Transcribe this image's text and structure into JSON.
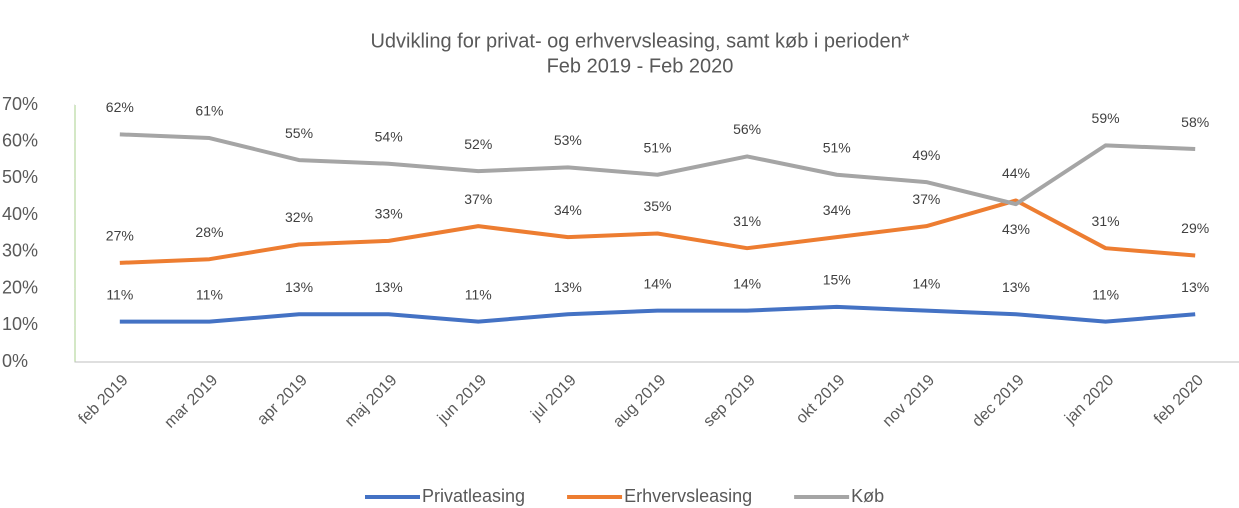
{
  "chart_data": {
    "type": "line",
    "title": "Udvikling for privat- og erhvervsleasing, samt køb i perioden*",
    "subtitle": "Feb 2019 - Feb 2020",
    "categories": [
      "feb 2019",
      "mar 2019",
      "apr 2019",
      "maj 2019",
      "jun 2019",
      "jul 2019",
      "aug 2019",
      "sep 2019",
      "okt 2019",
      "nov 2019",
      "dec 2019",
      "jan 2020",
      "feb 2020"
    ],
    "series": [
      {
        "name": "Privatleasing",
        "color": "#4472c4",
        "values": [
          11,
          11,
          13,
          13,
          11,
          13,
          14,
          14,
          15,
          14,
          13,
          11,
          13
        ],
        "value_labels": [
          "11%",
          "11%",
          "13%",
          "13%",
          "11%",
          "13%",
          "14%",
          "14%",
          "15%",
          "14%",
          "13%",
          "11%",
          "13%"
        ]
      },
      {
        "name": "Erhvervsleasing",
        "color": "#ed7d31",
        "values": [
          27,
          28,
          32,
          33,
          37,
          34,
          35,
          31,
          34,
          37,
          44,
          31,
          29
        ],
        "value_labels": [
          "27%",
          "28%",
          "32%",
          "33%",
          "37%",
          "34%",
          "35%",
          "31%",
          "34%",
          "37%",
          "44%",
          "31%",
          "29%"
        ]
      },
      {
        "name": "Køb",
        "color": "#a5a5a5",
        "values": [
          62,
          61,
          55,
          54,
          52,
          53,
          51,
          56,
          51,
          49,
          43,
          59,
          58
        ],
        "value_labels": [
          "62%",
          "61%",
          "55%",
          "54%",
          "52%",
          "53%",
          "51%",
          "56%",
          "51%",
          "49%",
          "43%",
          "59%",
          "58%"
        ]
      }
    ],
    "ylim": [
      0,
      70
    ],
    "yticks": [
      {
        "value": 0,
        "label": "0%"
      },
      {
        "value": 10,
        "label": "10%"
      },
      {
        "value": 20,
        "label": "20%"
      },
      {
        "value": 30,
        "label": "30%"
      },
      {
        "value": 40,
        "label": "40%"
      },
      {
        "value": 50,
        "label": "50%"
      },
      {
        "value": 60,
        "label": "60%"
      },
      {
        "value": 70,
        "label": "70%"
      }
    ],
    "legend": "bottom"
  }
}
